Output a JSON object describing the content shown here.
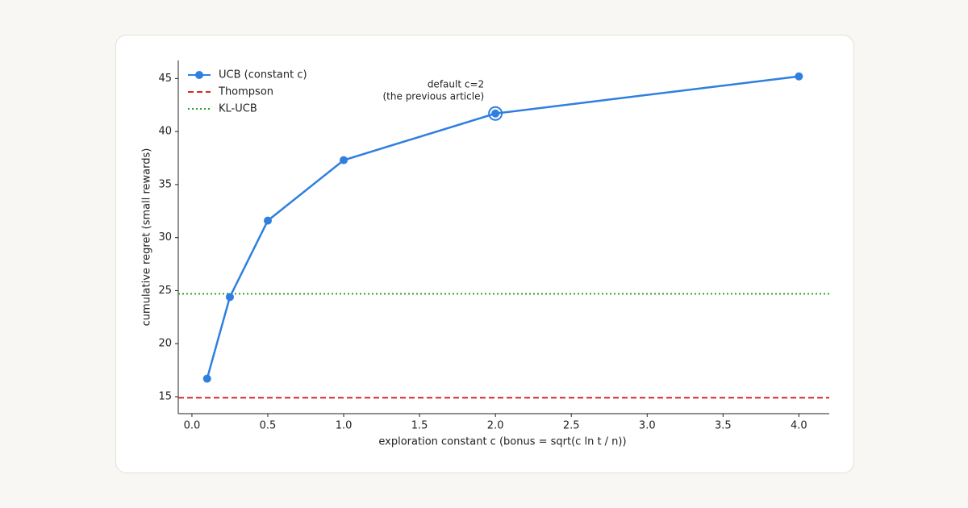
{
  "chart_data": {
    "type": "line",
    "xlabel": "exploration constant c  (bonus = sqrt(c ln t / n))",
    "ylabel": "cumulative regret (small rewards)",
    "x": [
      0.1,
      0.25,
      0.5,
      1.0,
      2.0,
      4.0
    ],
    "series": [
      {
        "name": "UCB (constant c)",
        "color": "#2f7fe0",
        "values": [
          16.7,
          24.4,
          31.6,
          37.3,
          41.7,
          45.2
        ]
      }
    ],
    "hlines": [
      {
        "name": "Thompson",
        "color": "#d62728",
        "style": "dashed",
        "value": 14.9
      },
      {
        "name": "KL-UCB",
        "color": "#2ca02c",
        "style": "dotted",
        "value": 24.7
      }
    ],
    "annotation": {
      "lines": [
        "default c=2",
        "(the previous article)"
      ],
      "highlight_x": 2.0
    },
    "xlim": [
      -0.09,
      4.2
    ],
    "ylim": [
      13.4,
      46.7
    ],
    "xticks": [
      {
        "value": 0,
        "label": "0.0"
      },
      0.5,
      {
        "value": 1,
        "label": "1.0"
      },
      1.5,
      {
        "value": 2,
        "label": "2.0"
      },
      2.5,
      {
        "value": 3,
        "label": "3.0"
      },
      3.5,
      {
        "value": 4,
        "label": "4.0"
      }
    ],
    "yticks": [
      15,
      20,
      25,
      30,
      35,
      40,
      45
    ],
    "legend": "upper left"
  }
}
